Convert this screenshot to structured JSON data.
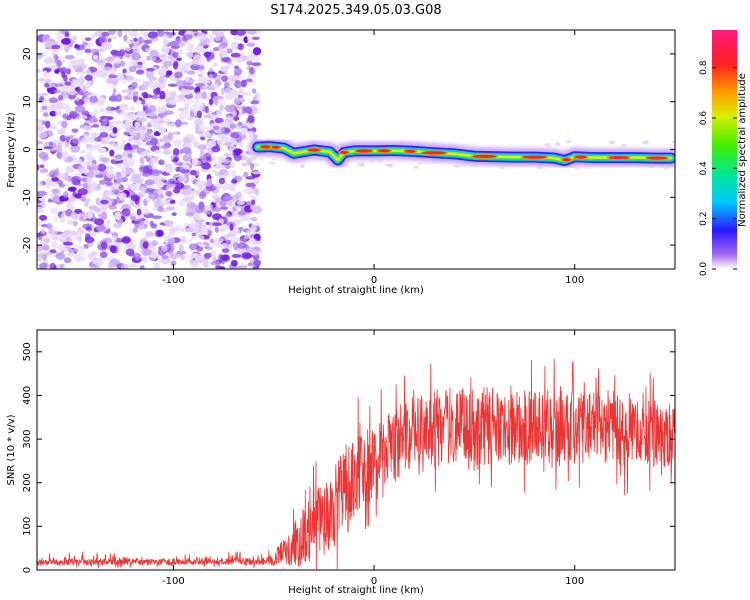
{
  "title": "S174.2025.349.05.03.G08",
  "chart_data": [
    {
      "type": "heatmap",
      "xlabel": "Height of straight line (km)",
      "ylabel": "Frequency (Hz)",
      "xlim": [
        -168,
        150
      ],
      "ylim": [
        -25,
        25
      ],
      "xticks": [
        -100,
        0,
        100
      ],
      "xtick_labels": [
        "-100",
        "0",
        "100"
      ],
      "yticks": [
        -20,
        -10,
        0,
        10,
        20
      ],
      "ytick_labels": [
        "-20",
        "-10",
        "0",
        "10",
        "20"
      ],
      "noise_region_x": [
        -168,
        -58
      ],
      "track_x": [
        -58,
        -52,
        -45,
        -40,
        -30,
        -22,
        -18,
        -15,
        -10,
        0,
        10,
        20,
        30,
        40,
        50,
        60,
        70,
        80,
        90,
        95,
        100,
        110,
        120,
        130,
        140,
        148
      ],
      "track_freq": [
        0.5,
        0.6,
        0.3,
        -0.8,
        -0.1,
        -0.5,
        -2.2,
        -0.6,
        -0.3,
        -0.3,
        -0.2,
        -0.4,
        -0.7,
        -0.9,
        -1.4,
        -1.5,
        -1.6,
        -1.6,
        -1.8,
        -2.3,
        -1.5,
        -1.7,
        -1.7,
        -1.7,
        -1.8,
        -1.8
      ],
      "colorbar": {
        "label": "Normalized spectral amplitude",
        "range": [
          0,
          0.95
        ],
        "ticks": [
          0.0,
          0.2,
          0.4,
          0.6,
          0.8
        ],
        "tick_labels": [
          "0.0",
          "0.2",
          "0.4",
          "0.6",
          "0.8"
        ]
      }
    },
    {
      "type": "line",
      "xlabel": "Height of straight line (km)",
      "ylabel": "SNR (10 * v/v)",
      "xlim": [
        -168,
        150
      ],
      "ylim": [
        0,
        550
      ],
      "xticks": [
        -100,
        0,
        100
      ],
      "xtick_labels": [
        "-100",
        "0",
        "100"
      ],
      "yticks": [
        0,
        100,
        200,
        300,
        400,
        500
      ],
      "ytick_labels": [
        "0",
        "100",
        "200",
        "300",
        "400",
        "500"
      ],
      "series": [
        {
          "name": "SNR",
          "color": "#ee3333",
          "x": [
            -168,
            -150,
            -130,
            -110,
            -90,
            -70,
            -55,
            -50,
            -45,
            -40,
            -35,
            -30,
            -25,
            -20,
            -15,
            -10,
            -5,
            0,
            5,
            10,
            15,
            20,
            25,
            30,
            40,
            50,
            60,
            70,
            80,
            90,
            100,
            110,
            120,
            130,
            140,
            150
          ],
          "baseline": [
            18,
            18,
            19,
            19,
            19,
            20,
            20,
            25,
            45,
            60,
            80,
            100,
            120,
            150,
            190,
            215,
            235,
            250,
            270,
            285,
            300,
            315,
            320,
            325,
            330,
            330,
            330,
            325,
            325,
            330,
            330,
            325,
            320,
            315,
            310,
            305
          ],
          "amplitude": [
            10,
            10,
            10,
            10,
            10,
            10,
            12,
            20,
            40,
            70,
            90,
            110,
            120,
            130,
            130,
            125,
            120,
            115,
            110,
            110,
            115,
            115,
            120,
            120,
            120,
            120,
            120,
            115,
            115,
            115,
            115,
            110,
            110,
            105,
            100,
            100
          ]
        }
      ]
    }
  ]
}
